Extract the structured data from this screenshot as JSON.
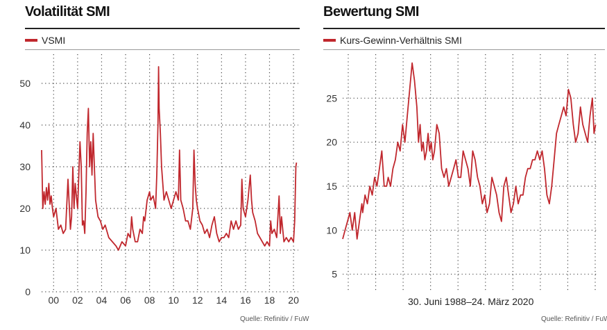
{
  "chart_data": [
    {
      "type": "line",
      "title": "Volatilität SMI",
      "legend": "VSMI",
      "series_color": "#c0272d",
      "xlabel": "",
      "ylabel": "",
      "xlim": [
        1999.0,
        2020.4
      ],
      "ylim": [
        0,
        57
      ],
      "yticks": [
        0,
        10,
        20,
        30,
        40,
        50
      ],
      "ytick_labels": [
        "0",
        "10",
        "20",
        "30",
        "40",
        "50"
      ],
      "xticks": [
        2000,
        2002,
        2004,
        2006,
        2008,
        2010,
        2012,
        2014,
        2016,
        2018,
        2020
      ],
      "xtick_labels": [
        "00",
        "02",
        "04",
        "06",
        "08",
        "10",
        "12",
        "14",
        "16",
        "18",
        "20"
      ],
      "source": "Quelle: Refinitiv / FuW",
      "series": [
        {
          "name": "VSMI",
          "x": [
            1999.0,
            1999.1,
            1999.2,
            1999.3,
            1999.4,
            1999.5,
            1999.6,
            1999.7,
            1999.8,
            1999.9,
            2000.0,
            2000.2,
            2000.4,
            2000.6,
            2000.8,
            2001.0,
            2001.2,
            2001.4,
            2001.5,
            2001.6,
            2001.7,
            2001.8,
            2001.9,
            2002.0,
            2002.2,
            2002.3,
            2002.4,
            2002.5,
            2002.6,
            2002.7,
            2002.8,
            2002.9,
            2003.0,
            2003.1,
            2003.2,
            2003.3,
            2003.5,
            2003.7,
            2003.9,
            2004.1,
            2004.3,
            2004.6,
            2004.9,
            2005.2,
            2005.4,
            2005.7,
            2006.0,
            2006.2,
            2006.4,
            2006.5,
            2006.6,
            2006.8,
            2007.0,
            2007.2,
            2007.4,
            2007.5,
            2007.6,
            2007.8,
            2008.0,
            2008.1,
            2008.3,
            2008.5,
            2008.6,
            2008.7,
            2008.75,
            2008.8,
            2008.9,
            2009.0,
            2009.2,
            2009.4,
            2009.6,
            2009.8,
            2010.0,
            2010.2,
            2010.4,
            2010.5,
            2010.6,
            2010.8,
            2011.0,
            2011.2,
            2011.4,
            2011.6,
            2011.7,
            2011.8,
            2011.9,
            2012.0,
            2012.2,
            2012.4,
            2012.6,
            2012.8,
            2013.0,
            2013.2,
            2013.4,
            2013.6,
            2013.8,
            2014.0,
            2014.2,
            2014.4,
            2014.6,
            2014.8,
            2015.0,
            2015.2,
            2015.4,
            2015.6,
            2015.7,
            2015.8,
            2016.0,
            2016.2,
            2016.4,
            2016.5,
            2016.6,
            2016.8,
            2017.0,
            2017.2,
            2017.4,
            2017.6,
            2017.8,
            2018.0,
            2018.1,
            2018.2,
            2018.4,
            2018.6,
            2018.8,
            2018.9,
            2019.0,
            2019.2,
            2019.4,
            2019.6,
            2019.8,
            2020.0,
            2020.1,
            2020.2,
            2020.25
          ],
          "values": [
            34,
            20,
            24,
            21,
            25,
            22,
            26,
            21,
            23,
            20,
            18,
            20,
            15,
            16,
            14,
            15,
            27,
            15,
            18,
            30,
            20,
            26,
            23,
            20,
            36,
            30,
            16,
            17,
            14,
            24,
            38,
            44,
            30,
            36,
            28,
            38,
            22,
            18,
            17,
            15,
            16,
            13,
            12,
            11,
            10,
            12,
            11,
            14,
            13,
            18,
            15,
            12,
            12,
            15,
            14,
            18,
            17,
            22,
            24,
            22,
            23,
            20,
            28,
            40,
            54,
            44,
            38,
            30,
            22,
            24,
            22,
            20,
            22,
            24,
            22,
            34,
            22,
            20,
            17,
            17,
            15,
            20,
            34,
            26,
            22,
            20,
            17,
            16,
            14,
            15,
            13,
            16,
            18,
            14,
            12,
            13,
            13,
            14,
            13,
            17,
            15,
            17,
            15,
            16,
            27,
            20,
            18,
            22,
            28,
            22,
            19,
            17,
            14,
            13,
            12,
            11,
            12,
            11,
            17,
            14,
            15,
            13,
            23,
            14,
            18,
            12,
            13,
            12,
            13,
            12,
            17,
            30,
            31
          ]
        }
      ]
    },
    {
      "type": "line",
      "title": "Bewertung SMI",
      "legend": "Kurs-Gewinn-Verhältnis SMI",
      "series_color": "#c0272d",
      "xlabel": "30. Juni 1988–24. März 2020",
      "ylabel": "",
      "xlim": [
        1988.5,
        2020.5
      ],
      "ylim": [
        3,
        30
      ],
      "yticks": [
        5,
        10,
        15,
        20,
        25
      ],
      "ytick_labels": [
        "5",
        "10",
        "15",
        "20",
        "25"
      ],
      "xgrid_count": 10,
      "source": "Quelle: Refinitiv / FuW",
      "series": [
        {
          "name": "Kurs-Gewinn-Verhältnis SMI",
          "x": [
            1988.5,
            1988.8,
            1989.1,
            1989.4,
            1989.7,
            1990.0,
            1990.3,
            1990.6,
            1990.9,
            1991.0,
            1991.3,
            1991.6,
            1991.9,
            1992.2,
            1992.5,
            1992.8,
            1993.1,
            1993.4,
            1993.7,
            1994.0,
            1994.2,
            1994.5,
            1994.8,
            1995.1,
            1995.4,
            1995.7,
            1996.0,
            1996.3,
            1996.6,
            1996.9,
            1997.2,
            1997.5,
            1997.8,
            1998.0,
            1998.2,
            1998.4,
            1998.6,
            1998.8,
            1999.0,
            1999.2,
            1999.4,
            1999.6,
            1999.8,
            2000.0,
            2000.3,
            2000.6,
            2000.9,
            2001.2,
            2001.5,
            2001.8,
            2002.1,
            2002.4,
            2002.7,
            2003.0,
            2003.3,
            2003.6,
            2003.9,
            2004.2,
            2004.5,
            2004.8,
            2005.1,
            2005.4,
            2005.7,
            2006.0,
            2006.3,
            2006.6,
            2006.9,
            2007.2,
            2007.5,
            2007.8,
            2008.1,
            2008.4,
            2008.7,
            2009.0,
            2009.3,
            2009.6,
            2009.9,
            2010.2,
            2010.5,
            2010.8,
            2011.1,
            2011.4,
            2011.7,
            2012.0,
            2012.3,
            2012.6,
            2012.9,
            2013.2,
            2013.5,
            2013.8,
            2014.1,
            2014.4,
            2014.7,
            2015.0,
            2015.3,
            2015.6,
            2015.9,
            2016.2,
            2016.5,
            2016.8,
            2017.1,
            2017.4,
            2017.7,
            2018.0,
            2018.3,
            2018.6,
            2018.9,
            2019.2,
            2019.5,
            2019.8,
            2020.0,
            2020.2
          ],
          "values": [
            9,
            10,
            11,
            12,
            10,
            12,
            9,
            11,
            13,
            12,
            14,
            13,
            15,
            14,
            16,
            15,
            17,
            19,
            15,
            15,
            16,
            15,
            17,
            18,
            20,
            19,
            22,
            20,
            23,
            26,
            29,
            27,
            24,
            20,
            22,
            19,
            20,
            18,
            19,
            21,
            19,
            20,
            18,
            19,
            22,
            21,
            17,
            16,
            17,
            15,
            16,
            17,
            18,
            16,
            16,
            19,
            18,
            17,
            15,
            19,
            18,
            16,
            15,
            13,
            14,
            12,
            13,
            16,
            15,
            14,
            12,
            11,
            15,
            16,
            14,
            12,
            13,
            15,
            13,
            14,
            14,
            16,
            17,
            17,
            18,
            18,
            19,
            18,
            19,
            17,
            14,
            13,
            15,
            18,
            21,
            22,
            23,
            24,
            23,
            26,
            25,
            22,
            20,
            21,
            24,
            22,
            21,
            20,
            23,
            25,
            21,
            22
          ]
        }
      ]
    }
  ]
}
